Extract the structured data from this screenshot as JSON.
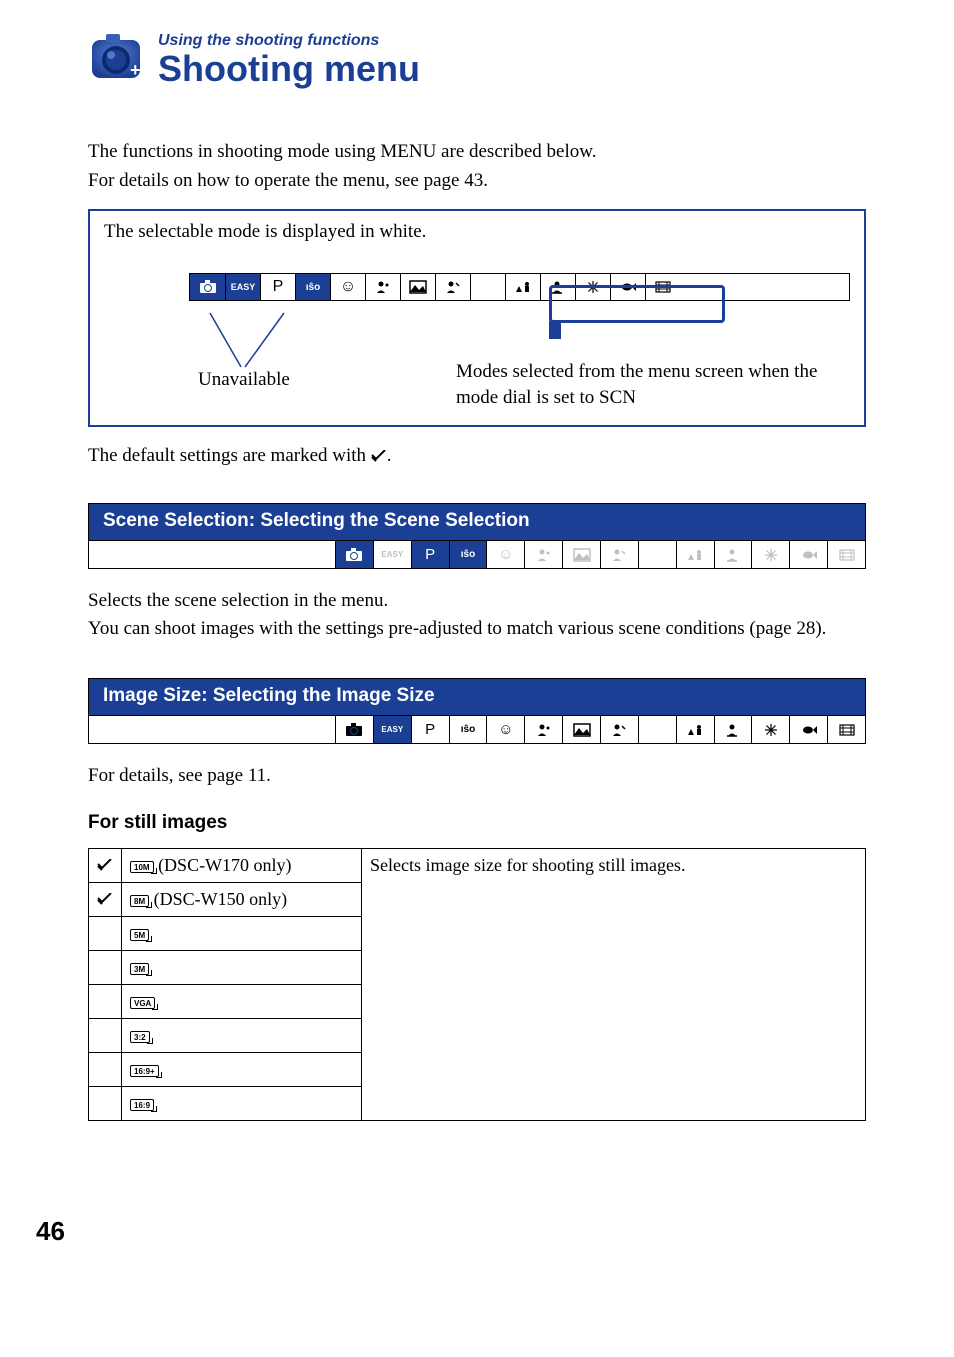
{
  "header": {
    "breadcrumb": "Using the shooting functions",
    "title": "Shooting menu"
  },
  "intro": {
    "line1": "The functions in shooting mode using MENU are described below.",
    "line2": "For details on how to operate the menu, see page 43."
  },
  "diagram": {
    "caption": "The selectable mode is displayed in white.",
    "unavailable_label": "Unavailable",
    "scn_label": "Modes selected from the menu screen when the mode dial is set to SCN",
    "mode_cells": [
      {
        "glyph": "",
        "bg": "blue",
        "icon": "camera"
      },
      {
        "glyph": "EASY",
        "bg": "blue",
        "style": "bold10"
      },
      {
        "glyph": "P",
        "bg": "white"
      },
      {
        "glyph": "ısô",
        "bg": "blue",
        "icon": "iso"
      },
      {
        "glyph": "☺",
        "bg": "white"
      },
      {
        "glyph": "",
        "bg": "white",
        "icon": "portrait"
      },
      {
        "glyph": "",
        "bg": "white",
        "icon": "landscape"
      },
      {
        "glyph": "",
        "bg": "white",
        "icon": "soft"
      },
      {
        "glyph": "☽",
        "bg": "white",
        "icon": "moon"
      },
      {
        "glyph": "",
        "bg": "white",
        "icon": "nightport"
      },
      {
        "glyph": "",
        "bg": "white",
        "icon": "food"
      },
      {
        "glyph": "",
        "bg": "white",
        "icon": "firework"
      },
      {
        "glyph": "",
        "bg": "white",
        "icon": "fish"
      },
      {
        "glyph": "",
        "bg": "white",
        "icon": "movie"
      }
    ]
  },
  "defaults_note_prefix": "The default settings are marked with ",
  "defaults_note_suffix": ".",
  "section1": {
    "title": "Scene Selection: Selecting the Scene Selection",
    "icon_states": [
      "blue",
      "grey",
      "blue",
      "blue",
      "grey",
      "grey",
      "grey",
      "grey",
      "grey",
      "grey",
      "grey",
      "grey",
      "grey",
      "grey"
    ],
    "body_a": "Selects the scene selection in the menu.",
    "body_b": "You can shoot images with the settings pre-adjusted to match various scene conditions (page 28)."
  },
  "section2": {
    "title": "Image Size: Selecting the Image Size",
    "icon_states": [
      "white",
      "blue",
      "white",
      "white",
      "white",
      "white",
      "white",
      "white",
      "white",
      "white",
      "white",
      "white",
      "white",
      "white"
    ],
    "body": "For details, see page 11."
  },
  "still_images": {
    "heading": "For still images",
    "desc": "Selects image size for shooting still images.",
    "rows": [
      {
        "check": true,
        "label": "10M",
        "note": " (DSC-W170 only)"
      },
      {
        "check": true,
        "label": "8M",
        "note": " (DSC-W150 only)"
      },
      {
        "check": false,
        "label": "5M",
        "note": ""
      },
      {
        "check": false,
        "label": "3M",
        "note": ""
      },
      {
        "check": false,
        "label": "VGA",
        "note": ""
      },
      {
        "check": false,
        "label": "3:2",
        "note": ""
      },
      {
        "check": false,
        "label": "16:9+",
        "note": ""
      },
      {
        "check": false,
        "label": "16:9",
        "note": ""
      }
    ]
  },
  "page_number": "46",
  "colors": {
    "brand_blue": "#1b3f94"
  }
}
